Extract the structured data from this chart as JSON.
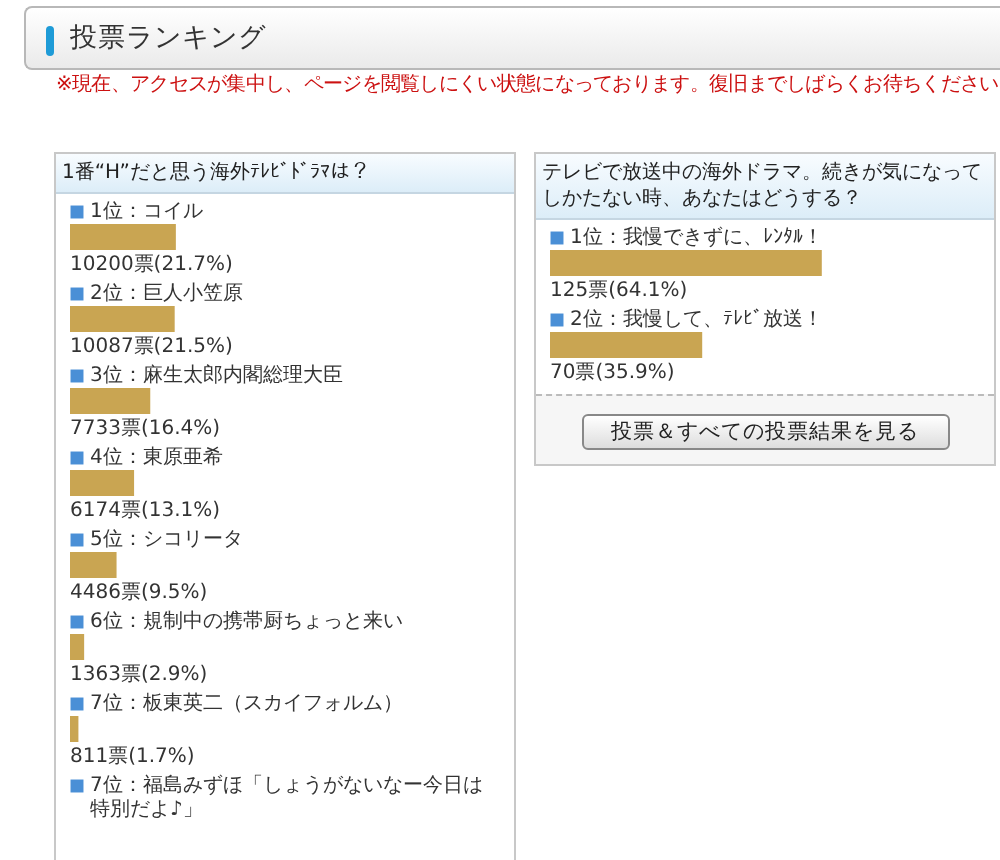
{
  "chart_data": [
    {
      "type": "bar",
      "orientation": "horizontal",
      "title": "1番“H”だと思う海外ﾃﾚﾋﾞﾄﾞﾗﾏは？",
      "categories": [
        "1位：コイル",
        "2位：巨人小笠原",
        "3位：麻生太郎内閣総理大臣",
        "4位：東原亜希",
        "5位：シコリータ",
        "6位：規制中の携帯厨ちょっと来い",
        "7位：板東英二（スカイフォルム）",
        "7位：福島みずほ「しょうがないなー今日は特別だよ♪」"
      ],
      "values": [
        10200,
        10087,
        7733,
        6174,
        4486,
        1363,
        811,
        null
      ],
      "value_labels": [
        "10200票(21.7%)",
        "10087票(21.5%)",
        "7733票(16.4%)",
        "6174票(13.1%)",
        "4486票(9.5%)",
        "1363票(2.9%)",
        "811票(1.7%)",
        null
      ],
      "color": "#c9a552",
      "annotations": [
        "投票ランキング",
        "※現在、アクセスが集中し、ページを閲覧しにくい状態になっております。復旧までしばらくお待ちください。"
      ]
    },
    {
      "type": "bar",
      "orientation": "horizontal",
      "title": "テレビで放送中の海外ドラマ。続きが気になってしかたない時、あなたはどうする？",
      "categories": [
        "1位：我慢できずに、ﾚﾝﾀﾙ！",
        "2位：我慢して、ﾃﾚﾋﾞ放送！"
      ],
      "values": [
        125,
        70
      ],
      "value_labels": [
        "125票(64.1%)",
        "70票(35.9%)"
      ],
      "color": "#c9a552",
      "annotations": [
        "投票＆すべての投票結果を見る"
      ]
    }
  ]
}
